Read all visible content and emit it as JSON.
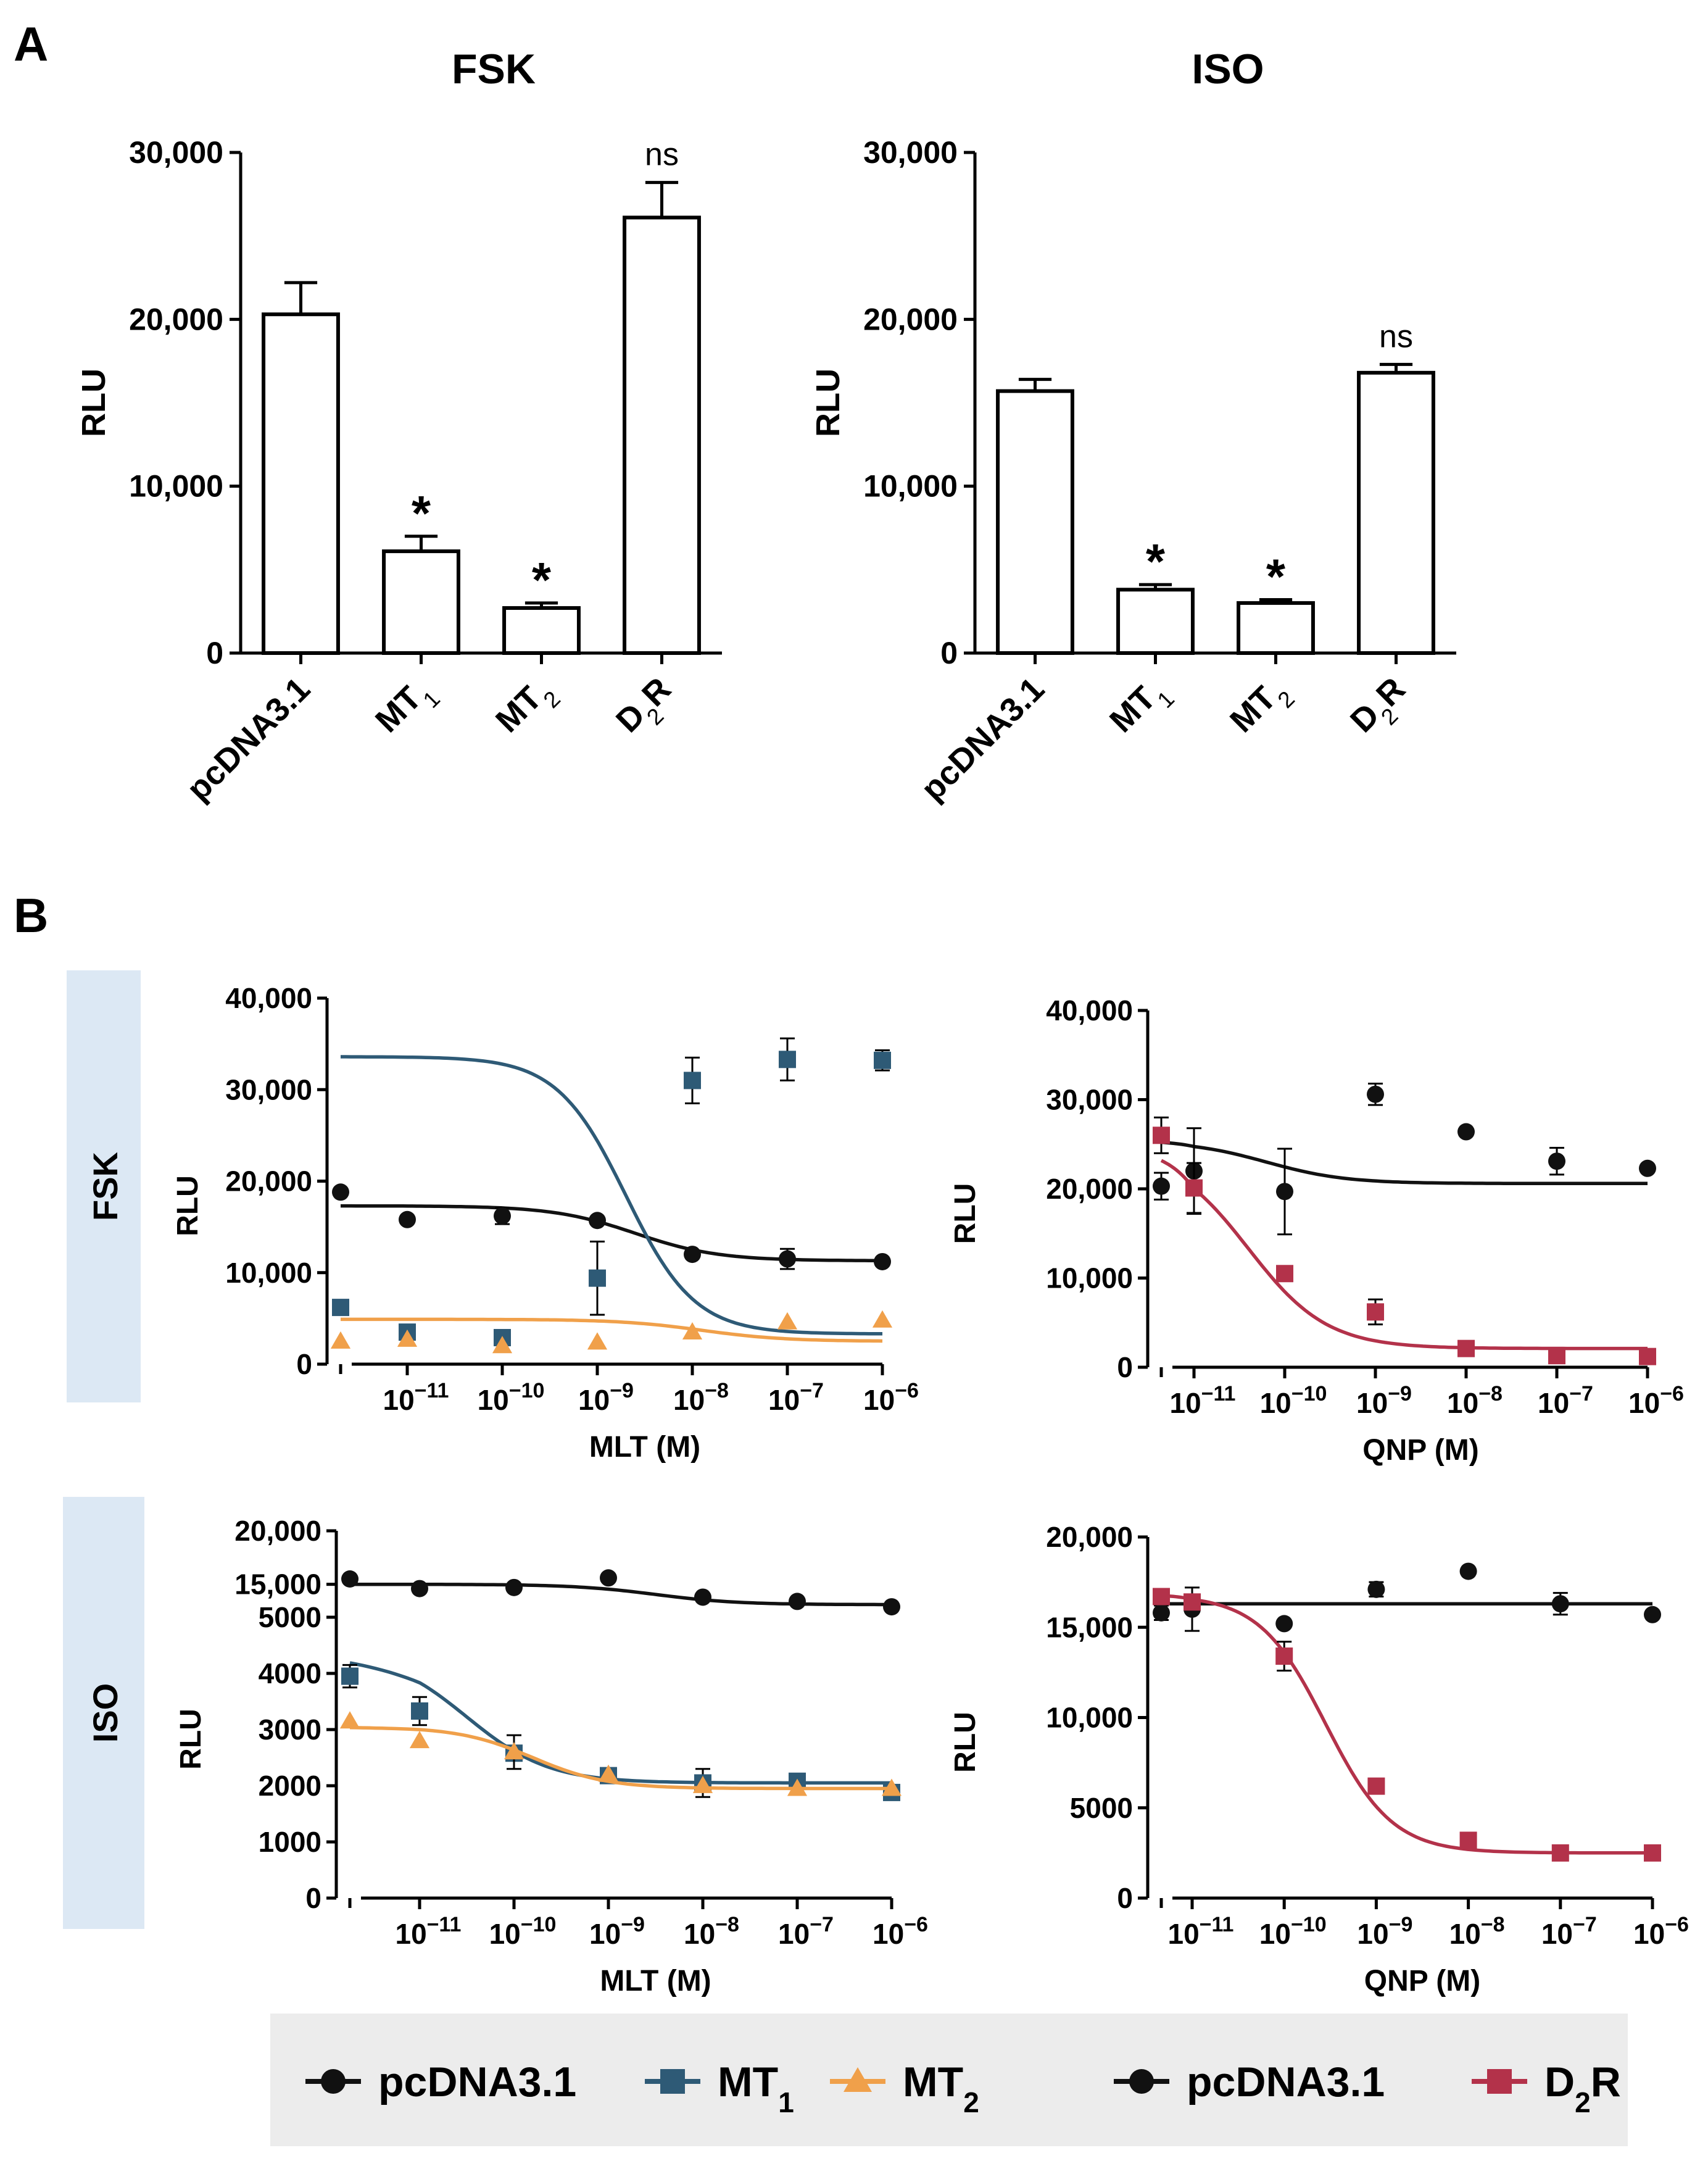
{
  "panel_labels": {
    "a": "A",
    "b": "B"
  },
  "side_labels": {
    "fsk": "FSK",
    "iso": "ISO"
  },
  "colors": {
    "pcdna": "#111111",
    "mt1": "#2e5a76",
    "mt2": "#f0a04a",
    "d2r": "#b3324a",
    "side_bg": "#dce8f4",
    "legend_bg": "#ececec"
  },
  "legend": {
    "items": [
      {
        "label": "pcDNA3.1",
        "sub": "",
        "marker": "circle",
        "color": "#111111"
      },
      {
        "label": "MT",
        "sub": "1",
        "marker": "square",
        "color": "#2e5a76"
      },
      {
        "label": "MT",
        "sub": "2",
        "marker": "triangle",
        "color": "#f0a04a"
      },
      {
        "label": "pcDNA3.1",
        "sub": "",
        "marker": "circle",
        "color": "#111111"
      },
      {
        "label": "D",
        "sub": "2",
        "suffix": "R",
        "marker": "square",
        "color": "#b3324a"
      }
    ]
  },
  "chart_data": [
    {
      "id": "A-FSK",
      "type": "bar",
      "title": "FSK",
      "ylabel": "RLU",
      "ylim": [
        0,
        30000
      ],
      "yticks": [
        0,
        10000,
        20000,
        30000
      ],
      "ytick_labels": [
        "0",
        "10,000",
        "20,000",
        "30,000"
      ],
      "categories": [
        {
          "main": "pcDNA3.1",
          "sub": "",
          "suffix": ""
        },
        {
          "main": "MT",
          "sub": "1",
          "suffix": ""
        },
        {
          "main": "MT",
          "sub": "2",
          "suffix": ""
        },
        {
          "main": "D",
          "sub": "2",
          "suffix": "R"
        }
      ],
      "values": [
        20300,
        6100,
        2700,
        26100
      ],
      "errors": [
        1900,
        900,
        300,
        2100
      ],
      "annotations": [
        "",
        "*",
        "*",
        "ns"
      ]
    },
    {
      "id": "A-ISO",
      "type": "bar",
      "title": "ISO",
      "ylabel": "RLU",
      "ylim": [
        0,
        30000
      ],
      "yticks": [
        0,
        10000,
        20000,
        30000
      ],
      "ytick_labels": [
        "0",
        "10,000",
        "20,000",
        "30,000"
      ],
      "categories": [
        {
          "main": "pcDNA3.1",
          "sub": "",
          "suffix": ""
        },
        {
          "main": "MT",
          "sub": "1",
          "suffix": ""
        },
        {
          "main": "MT",
          "sub": "2",
          "suffix": ""
        },
        {
          "main": "D",
          "sub": "2",
          "suffix": "R"
        }
      ],
      "values": [
        15700,
        3800,
        3000,
        16800
      ],
      "errors": [
        700,
        300,
        200,
        500
      ],
      "annotations": [
        "",
        "*",
        "*",
        "ns"
      ]
    },
    {
      "id": "B-FSK-MLT",
      "type": "line",
      "xlabel": "MLT (M)",
      "ylabel": "RLU",
      "xlim": [
        -11.5,
        -6
      ],
      "ylim": [
        0,
        40000
      ],
      "yticks": [
        0,
        10000,
        20000,
        30000,
        40000
      ],
      "ytick_labels": [
        "0",
        "10,000",
        "20,000",
        "30,000",
        "40,000"
      ],
      "xticks": [
        -11,
        -10,
        -9,
        -8,
        -7,
        -6
      ],
      "xtick_labels": [
        "−11",
        "−10",
        "−9",
        "−8",
        "−7",
        "−6"
      ],
      "xtick_base": "10",
      "series": [
        {
          "name": "pcDNA3.1",
          "color": "#111111",
          "marker": "circle",
          "x": [
            -11.5,
            -11,
            -10,
            -9,
            -8,
            -7,
            -6
          ],
          "y": [
            18800,
            15800,
            16200,
            15700,
            12000,
            11500,
            11200
          ],
          "err": [
            0,
            0,
            900,
            0,
            0,
            1100,
            0
          ],
          "fit": {
            "top": 17300,
            "bottom": 11300,
            "logec50": -8.6,
            "hill": 1
          }
        },
        {
          "name": "MT1",
          "color": "#2e5a76",
          "marker": "square",
          "x": [
            -11.5,
            -11,
            -10,
            -9,
            -8,
            -7,
            -6
          ],
          "y": [
            6200,
            3500,
            2900,
            9400,
            31000,
            33300,
            33200
          ],
          "err": [
            0,
            0,
            0,
            4000,
            2500,
            2300,
            1100
          ],
          "fit": {
            "top": 33600,
            "bottom": 3300,
            "logec50": -8.7,
            "hill": 1.2
          }
        },
        {
          "name": "MT2",
          "color": "#f0a04a",
          "marker": "triangle",
          "x": [
            -11.5,
            -11,
            -10,
            -9,
            -8,
            -7,
            -6
          ],
          "y": [
            2500,
            2700,
            2000,
            2400,
            3500,
            4600,
            4800
          ],
          "err": [
            0,
            0,
            0,
            0,
            0,
            0,
            0
          ],
          "fit": {
            "top": 4900,
            "bottom": 2500,
            "logec50": -7.9,
            "hill": 1
          }
        }
      ]
    },
    {
      "id": "B-FSK-QNP",
      "type": "line",
      "xlabel": "QNP (M)",
      "ylabel": "RLU",
      "xlim": [
        -11.5,
        -6
      ],
      "ylim": [
        0,
        40000
      ],
      "yticks": [
        0,
        10000,
        20000,
        30000,
        40000
      ],
      "ytick_labels": [
        "0",
        "10,000",
        "20,000",
        "30,000",
        "40,000"
      ],
      "xticks": [
        -11,
        -10,
        -9,
        -8,
        -7,
        -6
      ],
      "xtick_labels": [
        "−11",
        "−10",
        "−9",
        "−8",
        "−7",
        "−6"
      ],
      "xtick_base": "10",
      "series": [
        {
          "name": "pcDNA3.1",
          "color": "#111111",
          "marker": "circle",
          "x": [
            -11.5,
            -11,
            -10,
            -9,
            -8,
            -7,
            -6
          ],
          "y": [
            20300,
            22000,
            19700,
            30600,
            26400,
            23100,
            22300
          ],
          "err": [
            1500,
            4800,
            4800,
            1200,
            0,
            1500,
            0
          ],
          "fit": {
            "top": 25400,
            "bottom": 20600,
            "logec50": -10.2,
            "hill": 1
          }
        },
        {
          "name": "D2R",
          "color": "#b3324a",
          "marker": "square",
          "x": [
            -11.5,
            -11,
            -10,
            -9,
            -8,
            -7,
            -6
          ],
          "y": [
            26000,
            20100,
            10500,
            6200,
            2100,
            1300,
            1200
          ],
          "err": [
            2000,
            2800,
            0,
            1400,
            0,
            0,
            0
          ],
          "fit": {
            "top": 24500,
            "bottom": 2100,
            "logec50": -10.4,
            "hill": 1
          }
        }
      ]
    },
    {
      "id": "B-ISO-MLT",
      "type": "line",
      "xlabel": "MLT (M)",
      "ylabel": "RLU",
      "xlim": [
        -11.5,
        -6
      ],
      "ylim": [
        0,
        20000
      ],
      "broken_axis": {
        "lower": [
          0,
          5000
        ],
        "upper": [
          12500,
          20000
        ]
      },
      "yticks": [
        0,
        1000,
        2000,
        3000,
        4000,
        5000,
        15000,
        20000
      ],
      "ytick_labels": [
        "0",
        "1000",
        "2000",
        "3000",
        "4000",
        "5000",
        "15,000",
        "20,000"
      ],
      "xticks": [
        -11,
        -10,
        -9,
        -8,
        -7,
        -6
      ],
      "xtick_labels": [
        "−11",
        "−10",
        "−9",
        "−8",
        "−7",
        "−6"
      ],
      "xtick_base": "10",
      "series": [
        {
          "name": "pcDNA3.1",
          "color": "#111111",
          "marker": "circle",
          "x": [
            -11.5,
            -11,
            -10,
            -9,
            -8,
            -7,
            -6
          ],
          "y": [
            15500,
            14600,
            14700,
            15600,
            13800,
            13400,
            12900
          ],
          "err": [
            0,
            0,
            0,
            0,
            0,
            0,
            0
          ],
          "fit": {
            "top": 15000,
            "bottom": 13100,
            "logec50": -8.5,
            "hill": 1
          }
        },
        {
          "name": "MT1",
          "color": "#2e5a76",
          "marker": "square",
          "x": [
            -11.5,
            -11,
            -10,
            -9,
            -8,
            -7,
            -6
          ],
          "y": [
            3950,
            3330,
            2580,
            2180,
            2050,
            2080,
            1880
          ],
          "err": [
            200,
            250,
            120,
            80,
            250,
            80,
            50
          ],
          "fit": {
            "top": 4400,
            "bottom": 2050,
            "logec50": -10.5,
            "hill": 1
          }
        },
        {
          "name": "MT2",
          "color": "#f0a04a",
          "marker": "triangle",
          "x": [
            -11.5,
            -11,
            -10,
            -9,
            -8,
            -7,
            -6
          ],
          "y": [
            3150,
            2800,
            2600,
            2200,
            2000,
            1950,
            1950
          ],
          "err": [
            0,
            0,
            300,
            0,
            0,
            0,
            0
          ],
          "fit": {
            "top": 3050,
            "bottom": 1950,
            "logec50": -9.8,
            "hill": 1.1
          }
        }
      ]
    },
    {
      "id": "B-ISO-QNP",
      "type": "line",
      "xlabel": "QNP (M)",
      "ylabel": "RLU",
      "xlim": [
        -11.5,
        -6
      ],
      "ylim": [
        0,
        20000
      ],
      "yticks": [
        0,
        5000,
        10000,
        15000,
        20000
      ],
      "ytick_labels": [
        "0",
        "5000",
        "10,000",
        "15,000",
        "20,000"
      ],
      "xticks": [
        -11,
        -10,
        -9,
        -8,
        -7,
        -6
      ],
      "xtick_labels": [
        "−11",
        "−10",
        "−9",
        "−8",
        "−7",
        "−6"
      ],
      "xtick_base": "10",
      "series": [
        {
          "name": "pcDNA3.1",
          "color": "#111111",
          "marker": "circle",
          "x": [
            -11.5,
            -11,
            -10,
            -9,
            -8,
            -7,
            -6
          ],
          "y": [
            15800,
            16000,
            15200,
            17100,
            18100,
            16300,
            15700
          ],
          "err": [
            400,
            1200,
            0,
            400,
            0,
            600,
            0
          ],
          "fit": {
            "top": 16300,
            "bottom": 16300,
            "logec50": -9,
            "hill": 1
          }
        },
        {
          "name": "D2R",
          "color": "#b3324a",
          "marker": "square",
          "x": [
            -11.5,
            -11,
            -10,
            -9,
            -8,
            -7,
            -6
          ],
          "y": [
            16700,
            16400,
            13400,
            6200,
            3200,
            2500,
            2500
          ],
          "err": [
            0,
            0,
            800,
            0,
            0,
            0,
            0
          ],
          "fit": {
            "top": 16800,
            "bottom": 2500,
            "logec50": -9.55,
            "hill": 1.2
          }
        }
      ]
    }
  ]
}
